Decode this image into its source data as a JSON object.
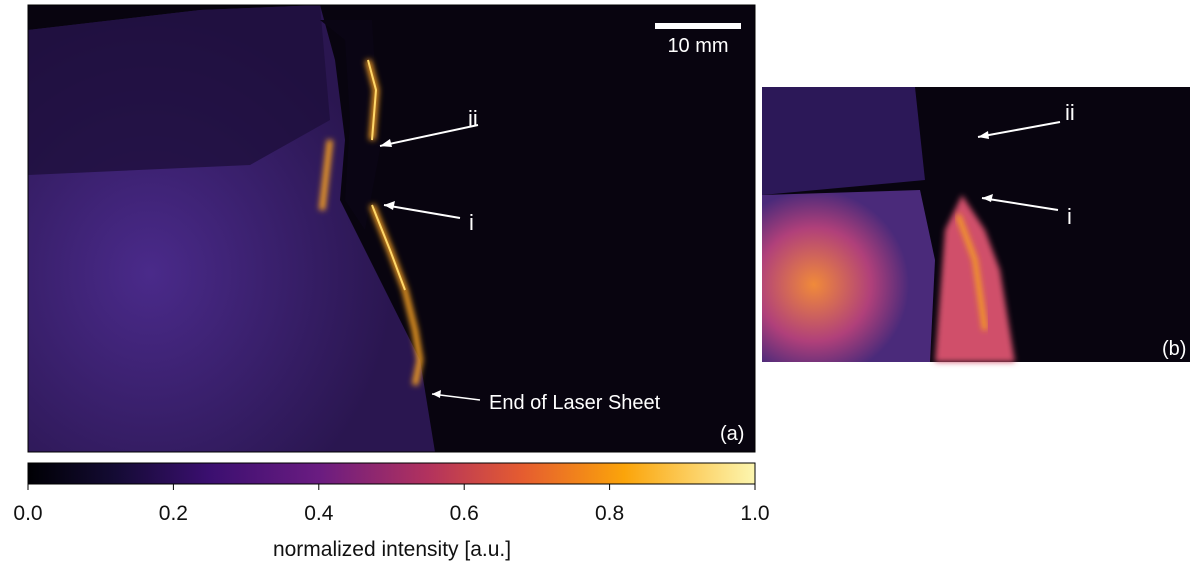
{
  "scale_bar": "10 mm",
  "panels": [
    {
      "label": "(a)",
      "annotations": [
        "ii",
        "i",
        "End of Laser Sheet"
      ]
    },
    {
      "label": "(b)",
      "annotations": [
        "ii",
        "i"
      ]
    }
  ],
  "colorbar": {
    "range": [
      0,
      1
    ],
    "ticks": [
      {
        "value": 0,
        "label": "0.0"
      },
      {
        "value": 0.2,
        "label": "0.2"
      },
      {
        "value": 0.4,
        "label": "0.4"
      },
      {
        "value": 0.6,
        "label": "0.6"
      },
      {
        "value": 0.8,
        "label": "0.8"
      },
      {
        "value": 1,
        "label": "1.0"
      }
    ],
    "label": "normalized intensity [a.u.]"
  }
}
